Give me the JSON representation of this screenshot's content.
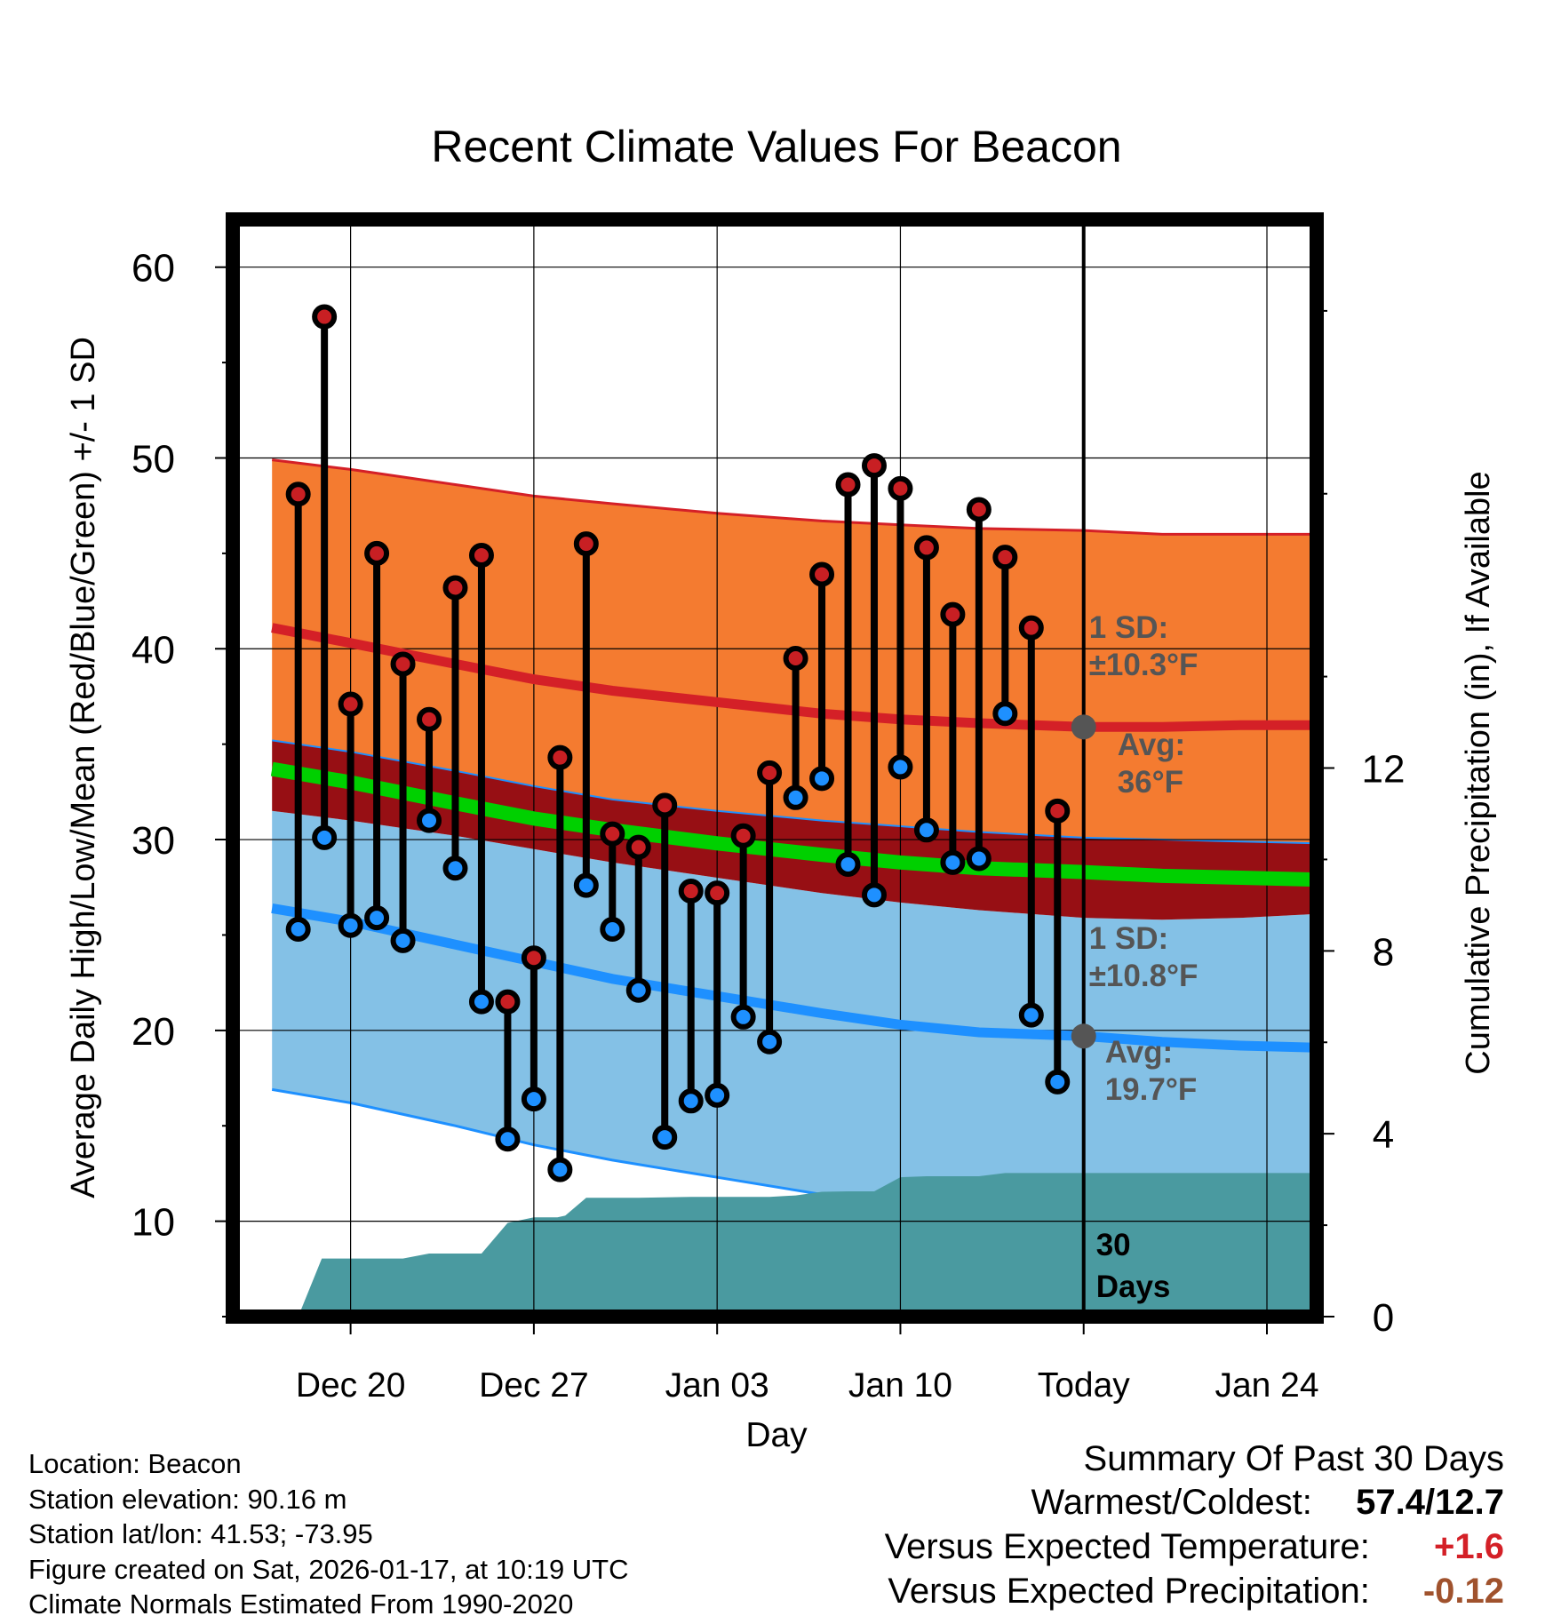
{
  "chart_data": {
    "type": "line",
    "title": "Recent Climate Values For Beacon",
    "xlabel": "Day",
    "ylabel": "Average Daily High/Low/Mean (Red/Blue/Green) +/- 1 SD",
    "y2label": "Cumulative Precipitation (in), If Available",
    "ylim": [
      5,
      62.5
    ],
    "y2lim": [
      0,
      24
    ],
    "xlim": [
      -4.5,
      36.9
    ],
    "yticks": [
      10,
      20,
      30,
      40,
      50,
      60
    ],
    "y2ticks": [
      0,
      4,
      8,
      12
    ],
    "xtick_positions": [
      0,
      7,
      14,
      21,
      28,
      35
    ],
    "xtick_labels": [
      "Dec 20",
      "Dec 27",
      "Jan 03",
      "Jan 10",
      "Today",
      "Jan 24"
    ],
    "today_day": 28,
    "highs": [
      48.1,
      57.4,
      37.1,
      45.0,
      39.2,
      36.3,
      43.2,
      44.9,
      21.5,
      23.8,
      34.3,
      45.5,
      30.3,
      29.6,
      31.8,
      27.3,
      27.2,
      30.2,
      33.5,
      39.5,
      43.9,
      48.6,
      49.6,
      48.4,
      45.3,
      41.8,
      47.3,
      44.8,
      41.1,
      31.5
    ],
    "lows": [
      25.3,
      30.1,
      25.5,
      25.9,
      24.7,
      31.0,
      28.5,
      21.5,
      14.3,
      16.4,
      12.7,
      27.6,
      25.3,
      22.1,
      14.4,
      16.3,
      16.6,
      20.7,
      19.4,
      32.2,
      33.2,
      28.7,
      27.1,
      33.8,
      30.5,
      28.8,
      29.0,
      36.6,
      20.8,
      17.3
    ],
    "normals": {
      "days": [
        -3,
        0,
        4,
        7,
        10,
        14,
        18,
        21,
        24,
        28,
        31,
        34,
        36.9
      ],
      "high_avg": [
        41.1,
        40.3,
        39.2,
        38.4,
        37.8,
        37.2,
        36.6,
        36.3,
        36.1,
        35.9,
        35.9,
        36.0,
        36.0
      ],
      "high_upper": [
        49.9,
        49.4,
        48.6,
        48.0,
        47.6,
        47.1,
        46.7,
        46.5,
        46.3,
        46.2,
        46.0,
        46.0,
        46.0
      ],
      "high_lower": [
        35.2,
        34.6,
        33.6,
        32.8,
        32.1,
        31.5,
        31.0,
        30.7,
        30.4,
        30.1,
        30.0,
        29.9,
        29.8
      ],
      "mean_avg": [
        33.7,
        33.0,
        31.9,
        31.1,
        30.5,
        29.8,
        29.2,
        28.8,
        28.5,
        28.3,
        28.1,
        28.0,
        27.9
      ],
      "mean_upper": [
        34.2,
        33.5,
        32.4,
        31.6,
        31.0,
        30.3,
        29.7,
        29.3,
        29.0,
        28.8,
        28.6,
        28.5,
        28.4
      ],
      "mean_lower": [
        33.2,
        32.5,
        31.4,
        30.6,
        30.0,
        29.3,
        28.7,
        28.3,
        28.0,
        27.8,
        27.6,
        27.5,
        27.4
      ],
      "low_avg": [
        26.4,
        25.7,
        24.5,
        23.6,
        22.7,
        21.8,
        20.9,
        20.3,
        19.9,
        19.7,
        19.4,
        19.2,
        19.1
      ],
      "low_upper": [
        31.5,
        31.0,
        30.2,
        29.5,
        28.8,
        28.0,
        27.2,
        26.7,
        26.3,
        25.9,
        25.8,
        25.9,
        26.1
      ],
      "low_lower": [
        16.9,
        16.2,
        15.0,
        14.0,
        13.2,
        12.3,
        11.4,
        10.8,
        10.3,
        9.8,
        9.5,
        9.3,
        9.2
      ]
    },
    "precip": {
      "days": [
        -2.6,
        -2.0,
        -1.1,
        1.0,
        2.0,
        3.0,
        4.0,
        5.0,
        6.0,
        7.0,
        7.9,
        8.2,
        9.0,
        10.0,
        11.0,
        13.0,
        14.0,
        15.0,
        16.0,
        17.0,
        18.0,
        19.0,
        20.0,
        21.0,
        22.0,
        23.0,
        24.0,
        25.0,
        26.0,
        27.0,
        28.0,
        36.9
      ],
      "values": [
        0,
        0,
        1.27,
        1.27,
        1.27,
        1.38,
        1.38,
        1.38,
        2.05,
        2.17,
        2.17,
        2.21,
        2.6,
        2.6,
        2.6,
        2.62,
        2.62,
        2.62,
        2.62,
        2.65,
        2.73,
        2.74,
        2.74,
        3.05,
        3.07,
        3.07,
        3.07,
        3.14,
        3.14,
        3.14,
        3.14,
        3.14
      ]
    },
    "annotations": {
      "high_sd": "±10.3°F",
      "high_avg": "36°F",
      "low_sd": "±10.8°F",
      "low_avg": "19.7°F",
      "sd_label": "1 SD:",
      "avg_label": "Avg:",
      "window_num": "30",
      "window_unit": "Days"
    },
    "colors": {
      "high_band": "#f47b30",
      "high_line": "#d42027",
      "mean_band": "#970f14",
      "mean_line": "#00d000",
      "low_band": "#84c1e6",
      "low_line": "#1e90ff",
      "precip": "#4a9aa0",
      "high_dot": "#c81f23",
      "low_dot": "#1e90ff",
      "annotation": "#555555"
    }
  },
  "footer": {
    "location": "Location: Beacon",
    "elevation": "Station elevation: 90.16 m",
    "latlon": "Station lat/lon: 41.53; -73.95",
    "created": "Figure created on Sat, 2026-01-17, at 10:19 UTC",
    "normals": "Climate Normals Estimated From 1990-2020"
  },
  "summary": {
    "title": "Summary Of Past 30 Days",
    "warm_cold_label": "Warmest/Coldest:",
    "warm_cold_value": "57.4/12.7",
    "temp_label": "Versus Expected Temperature:",
    "temp_value": "+1.6",
    "temp_color": "#d42027",
    "precip_label": "Versus Expected Precipitation:",
    "precip_value": "-0.12",
    "precip_color": "#a0522d"
  }
}
